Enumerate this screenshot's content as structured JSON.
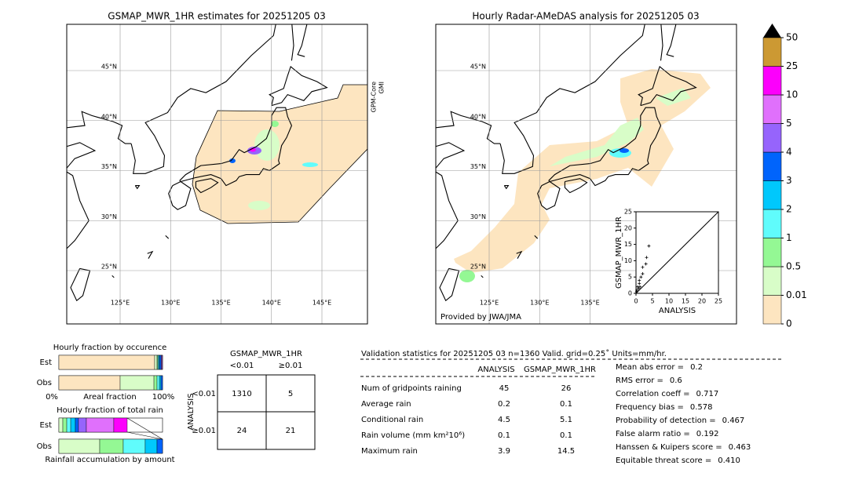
{
  "left_map": {
    "title": "GSMAP_MWR_1HR estimates for 20251205 03",
    "lat_ticks": [
      {
        "value": 45,
        "label": "45°N"
      },
      {
        "value": 40,
        "label": "40°N"
      },
      {
        "value": 35,
        "label": "35°N"
      },
      {
        "value": 30,
        "label": "30°N"
      },
      {
        "value": 25,
        "label": "25°N"
      }
    ],
    "lon_ticks": [
      {
        "value": 125,
        "label": "125°E"
      },
      {
        "value": 130,
        "label": "130°E"
      },
      {
        "value": 135,
        "label": "135°E"
      },
      {
        "value": 140,
        "label": "140°E"
      },
      {
        "value": 145,
        "label": "145°E"
      }
    ],
    "sensor": [
      "GPM-Core",
      "GMI"
    ]
  },
  "right_map": {
    "title": "Hourly Radar-AMeDAS analysis for 20251205 03",
    "lat_ticks": [
      {
        "value": 45,
        "label": "45°N"
      },
      {
        "value": 40,
        "label": "40°N"
      },
      {
        "value": 35,
        "label": "35°N"
      },
      {
        "value": 30,
        "label": "30°N"
      },
      {
        "value": 25,
        "label": "25°N"
      }
    ],
    "lon_ticks": [
      {
        "value": 125,
        "label": "125°E"
      },
      {
        "value": 130,
        "label": "130°E"
      },
      {
        "value": 135,
        "label": "135°E"
      }
    ],
    "credit": "Provided by JWA/JMA"
  },
  "scatter": {
    "xlabel": "ANALYSIS",
    "ylabel": "GSMAP_MWR_1HR",
    "xlim": [
      0,
      25
    ],
    "ylim": [
      0,
      25
    ],
    "xticks": [
      0,
      5,
      10,
      15,
      20,
      25
    ],
    "yticks": [
      0,
      5,
      10,
      15,
      20,
      25
    ],
    "x": [
      0,
      0.2,
      0.3,
      0.5,
      0.8,
      1,
      1,
      1.2,
      1.5,
      2,
      2,
      3,
      3.2,
      3.9
    ],
    "y": [
      0,
      0.5,
      1,
      2,
      1.5,
      3,
      4,
      2,
      5,
      6,
      8,
      9,
      11,
      14.5
    ]
  },
  "colorbar": {
    "levels": [
      0,
      0.01,
      0.5,
      1,
      2,
      3,
      4,
      5,
      10,
      25,
      50
    ],
    "colors": [
      "#fde5c0",
      "#d8fdc8",
      "#94f894",
      "#60fcfc",
      "#00c8fc",
      "#0064fc",
      "#9664fc",
      "#e070fc",
      "#fc00fc",
      "#cc9933"
    ]
  },
  "occurrence": {
    "title": "Hourly fraction by occurence",
    "xlabel": "Areal fraction",
    "xmin": "0%",
    "xmax": "100%",
    "rows": [
      {
        "label": "Est",
        "values": [
          92.4,
          2.3,
          0.8,
          0.8,
          0.8,
          1.5,
          0.7,
          0.7,
          0,
          0
        ]
      },
      {
        "label": "Obs",
        "values": [
          59.1,
          32.6,
          3.0,
          2.3,
          1.5,
          1.5,
          0,
          0,
          0,
          0
        ]
      }
    ]
  },
  "total_rain": {
    "title": "Hourly fraction of total rain",
    "xlabel": "Rainfall accumulation by amount",
    "rows": [
      {
        "label": "Est",
        "values": [
          0,
          3.8,
          3.8,
          3.8,
          4.5,
          3,
          7.6,
          26.5,
          12.9,
          0
        ]
      },
      {
        "label": "Obs",
        "values": [
          0,
          39.4,
          22.7,
          21.2,
          11.4,
          5.3,
          0,
          0,
          0,
          0
        ]
      }
    ]
  },
  "contingency": {
    "title": "GSMAP_MWR_1HR",
    "columns": [
      "<0.01",
      "≥0.01"
    ],
    "row_title": "ANALYSIS",
    "rows": [
      {
        "label": "<0.01",
        "cells": [
          1310,
          5
        ]
      },
      {
        "label": "≥0.01",
        "cells": [
          24,
          21
        ]
      }
    ]
  },
  "stats": {
    "title": "Validation statistics for 20251205 03  n=1360 Valid. grid=0.25˚ Units=mm/hr.",
    "columns": [
      "ANALYSIS",
      "GSMAP_MWR_1HR"
    ],
    "rows": [
      {
        "label": "Num of gridpoints raining",
        "values": [
          45,
          26
        ]
      },
      {
        "label": "Average rain",
        "values": [
          0.2,
          0.1
        ]
      },
      {
        "label": "Conditional rain",
        "values": [
          4.5,
          5.1
        ]
      },
      {
        "label": "Rain volume (mm km²10⁶)",
        "values": [
          0.1,
          0.1
        ]
      },
      {
        "label": "Maximum rain",
        "values": [
          3.9,
          14.5
        ]
      }
    ],
    "scores": [
      {
        "label": "Mean abs error =",
        "value": 0.2
      },
      {
        "label": "RMS error =",
        "value": 0.6
      },
      {
        "label": "Correlation coeff =",
        "value": 0.717
      },
      {
        "label": "Frequency bias =",
        "value": 0.578
      },
      {
        "label": "Probability of detection =",
        "value": 0.467
      },
      {
        "label": "False alarm ratio =",
        "value": 0.192
      },
      {
        "label": "Hanssen & Kuipers score =",
        "value": 0.463
      },
      {
        "label": "Equitable threat score =",
        "value": "0.410"
      }
    ]
  }
}
